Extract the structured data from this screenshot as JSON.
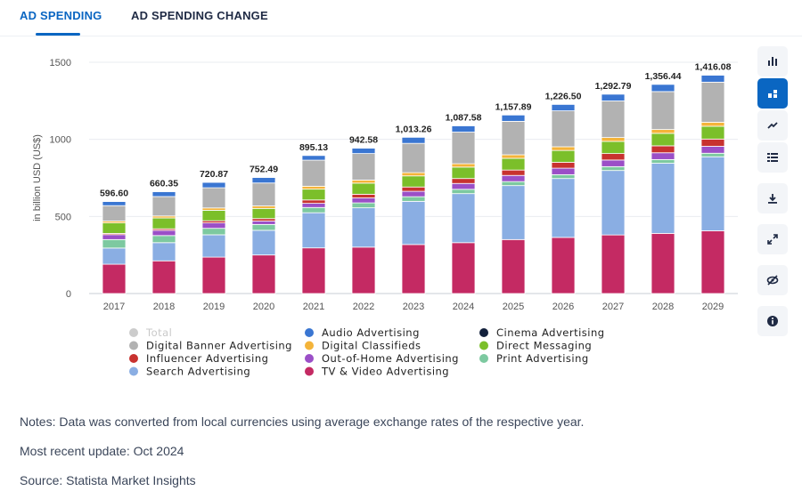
{
  "tabs": {
    "active": "AD SPENDING",
    "inactive": "AD SPENDING CHANGE"
  },
  "sidebar": {
    "icons": [
      "bar-chart-icon",
      "stacked-bar-icon",
      "line-chart-icon",
      "table-icon",
      "download-icon",
      "expand-icon",
      "hide-icon",
      "info-icon"
    ],
    "active_color": "#0a66c2"
  },
  "notes": {
    "notes_line": "Notes: Data was converted from local currencies using average exchange rates of the respective year.",
    "update_line": "Most recent update: Oct 2024",
    "source_line": "Source: Statista Market Insights"
  },
  "chart_data": {
    "type": "bar",
    "stacked": true,
    "title": "",
    "xlabel": "",
    "ylabel": "in billion USD (US$)",
    "ylim": [
      0,
      1500
    ],
    "yticks": [
      0,
      500,
      1000,
      1500
    ],
    "grid": true,
    "legend_position": "bottom",
    "categories": [
      "2017",
      "2018",
      "2019",
      "2020",
      "2021",
      "2022",
      "2023",
      "2024",
      "2025",
      "2026",
      "2027",
      "2028",
      "2029"
    ],
    "total_labels": [
      "596.60",
      "660.35",
      "720.87",
      "752.49",
      "895.13",
      "942.58",
      "1,013.26",
      "1,087.58",
      "1,157.89",
      "1,226.50",
      "1,292.79",
      "1,356.44",
      "1,416.08"
    ],
    "totals": [
      596.6,
      660.35,
      720.87,
      752.49,
      895.13,
      942.58,
      1013.26,
      1087.58,
      1157.89,
      1226.5,
      1292.79,
      1356.44,
      1416.08
    ],
    "legend": [
      {
        "name": "Total",
        "color": "#cccccc",
        "faded": true
      },
      {
        "name": "Audio Advertising",
        "color": "#3a76d2"
      },
      {
        "name": "Cinema Advertising",
        "color": "#13213c"
      },
      {
        "name": "Digital Banner Advertising",
        "color": "#b2b2b2"
      },
      {
        "name": "Digital Classifieds",
        "color": "#f4b43a"
      },
      {
        "name": "Direct Messaging",
        "color": "#7bbf2a"
      },
      {
        "name": "Influencer Advertising",
        "color": "#c8322f"
      },
      {
        "name": "Out-of-Home Advertising",
        "color": "#9b4fc7"
      },
      {
        "name": "Print Advertising",
        "color": "#7dc9a0"
      },
      {
        "name": "Search Advertising",
        "color": "#8aaee3"
      },
      {
        "name": "TV & Video Advertising",
        "color": "#c42a63"
      }
    ],
    "series": [
      {
        "name": "TV & Video Advertising",
        "color": "#c42a63",
        "values": [
          190,
          212,
          236,
          250,
          296,
          301,
          318,
          330,
          350,
          364,
          380,
          390,
          407
        ]
      },
      {
        "name": "Search Advertising",
        "color": "#8aaee3",
        "values": [
          105,
          118,
          145,
          160,
          228,
          255,
          280,
          318,
          350,
          382,
          418,
          455,
          480
        ]
      },
      {
        "name": "Print Advertising",
        "color": "#7dc9a0",
        "values": [
          55,
          46,
          42,
          38,
          34,
          32,
          30,
          28,
          26,
          25,
          25,
          24,
          23
        ]
      },
      {
        "name": "Out-of-Home Advertising",
        "color": "#9b4fc7",
        "values": [
          32,
          34,
          35,
          22,
          27,
          32,
          35,
          38,
          40,
          42,
          43,
          44,
          45
        ]
      },
      {
        "name": "Influencer Advertising",
        "color": "#c8322f",
        "values": [
          8,
          10,
          14,
          16,
          22,
          24,
          28,
          32,
          35,
          38,
          42,
          45,
          47
        ]
      },
      {
        "name": "Direct Messaging",
        "color": "#7bbf2a",
        "values": [
          68,
          70,
          68,
          66,
          70,
          72,
          72,
          74,
          76,
          77,
          79,
          81,
          83
        ]
      },
      {
        "name": "Digital Classifieds",
        "color": "#f4b43a",
        "values": [
          12,
          13,
          15,
          16,
          19,
          20,
          21,
          22,
          23,
          24,
          25,
          25,
          26
        ]
      },
      {
        "name": "Digital Banner Advertising",
        "color": "#b2b2b2",
        "values": [
          100,
          126,
          131,
          149,
          169,
          172,
          190,
          205,
          217,
          233,
          237,
          246,
          260
        ]
      },
      {
        "name": "Audio Advertising",
        "color": "#3a76d2",
        "values": [
          26.6,
          31.35,
          34.87,
          35.49,
          30.13,
          34.58,
          39.26,
          40.58,
          40.89,
          41.5,
          43.79,
          46.44,
          45.08
        ]
      },
      {
        "name": "Cinema Advertising",
        "color": "#13213c",
        "values": [
          0,
          0,
          0,
          0,
          0,
          0,
          0,
          0,
          0,
          0,
          0,
          0,
          0
        ]
      }
    ]
  }
}
